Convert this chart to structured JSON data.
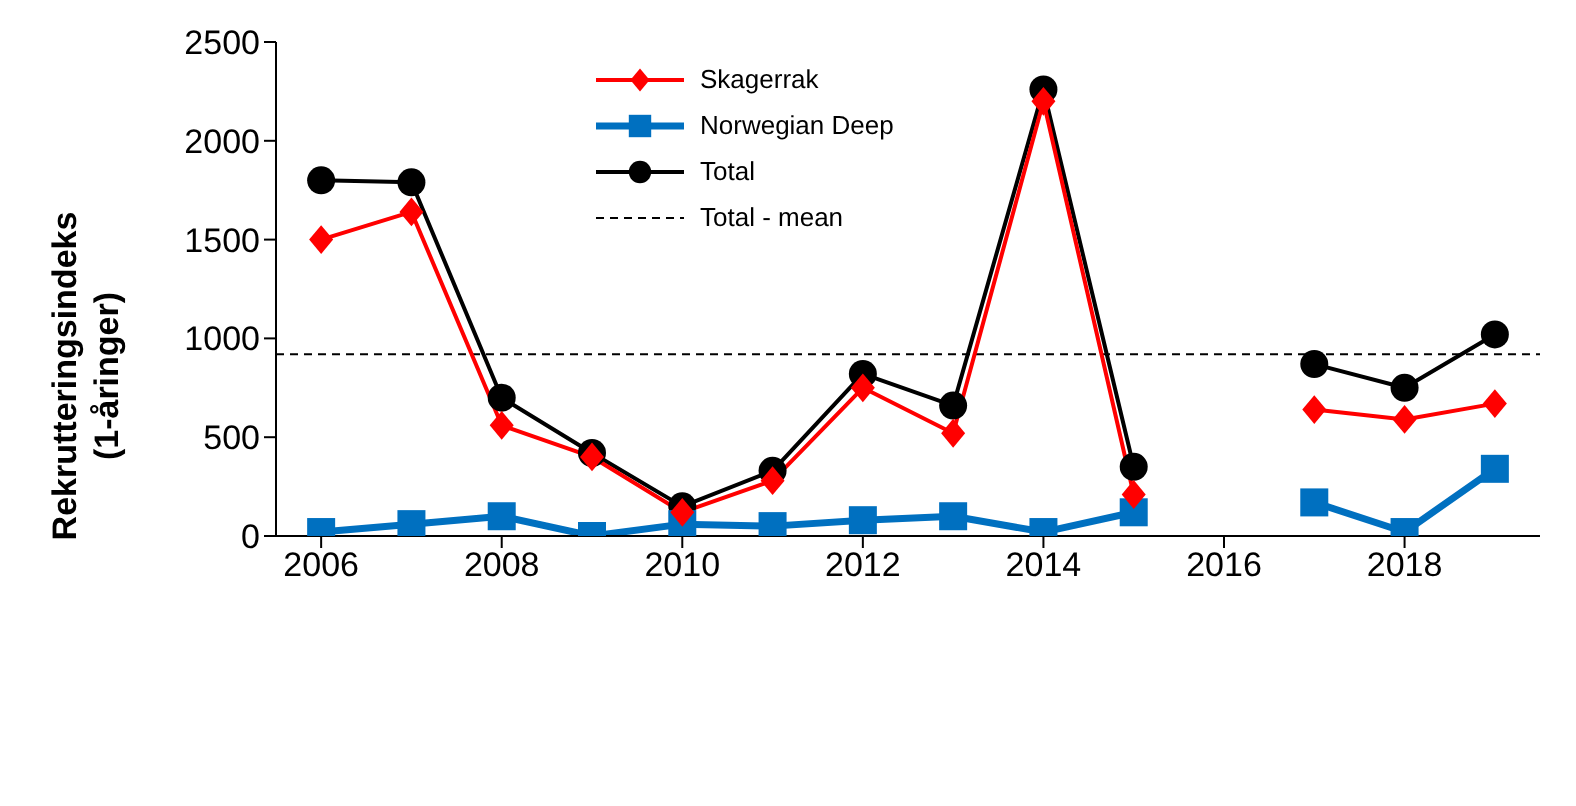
{
  "chart_data": {
    "type": "line",
    "ylabel": "Rekrutteringsindeks (1-åringer)",
    "x": [
      2006,
      2007,
      2008,
      2009,
      2010,
      2011,
      2012,
      2013,
      2014,
      2015,
      2016,
      2017,
      2018,
      2019
    ],
    "series": [
      {
        "name": "Skagerrak",
        "color": "#ff0000",
        "marker": "diamond",
        "values": [
          1500,
          1640,
          560,
          400,
          120,
          280,
          750,
          520,
          2200,
          210,
          null,
          640,
          590,
          670
        ]
      },
      {
        "name": "Norwegian Deep",
        "color": "#0070c0",
        "marker": "square",
        "values": [
          20,
          60,
          100,
          0,
          60,
          50,
          80,
          100,
          20,
          120,
          null,
          170,
          20,
          340
        ]
      },
      {
        "name": "Total",
        "color": "#000000",
        "marker": "circle",
        "values": [
          1800,
          1790,
          700,
          420,
          150,
          330,
          820,
          660,
          2260,
          350,
          null,
          870,
          750,
          1020
        ]
      }
    ],
    "ref_lines": [
      {
        "axis": "y",
        "value": 920,
        "label": "Total - mean",
        "color": "#000000",
        "line_style": "dashed"
      }
    ],
    "xlim": [
      2005.5,
      2019.5
    ],
    "xticks": [
      2006,
      2008,
      2010,
      2012,
      2014,
      2016,
      2018
    ],
    "ylim": [
      0,
      2500
    ],
    "yticks": [
      0,
      500,
      1000,
      1500,
      2000,
      2500
    ],
    "grid": false,
    "legend": "top",
    "line_style": "solid"
  }
}
